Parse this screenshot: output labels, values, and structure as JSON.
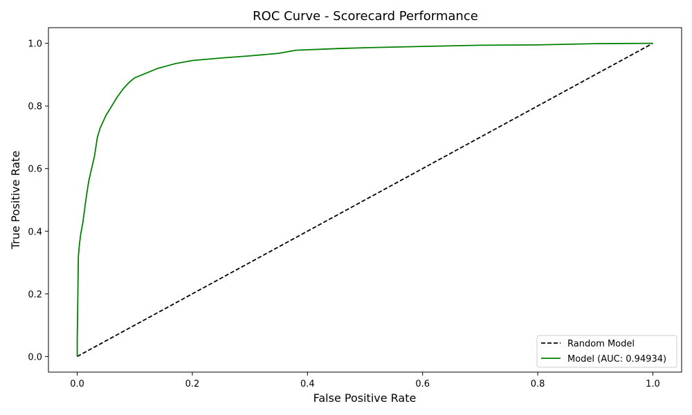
{
  "chart_data": {
    "type": "line",
    "title": "ROC Curve - Scorecard Performance",
    "xlabel": "False Positive Rate",
    "ylabel": "True Positive Rate",
    "xlim": [
      -0.05,
      1.05
    ],
    "ylim": [
      -0.05,
      1.05
    ],
    "xticks": [
      0.0,
      0.2,
      0.4,
      0.6,
      0.8,
      1.0
    ],
    "yticks": [
      0.0,
      0.2,
      0.4,
      0.6,
      0.8,
      1.0
    ],
    "xtick_labels": [
      "0.0",
      "0.2",
      "0.4",
      "0.6",
      "0.8",
      "1.0"
    ],
    "ytick_labels": [
      "0.0",
      "0.2",
      "0.4",
      "0.6",
      "0.8",
      "1.0"
    ],
    "grid": false,
    "legend_position": "lower-right",
    "series": [
      {
        "name": "Random Model",
        "color": "#000000",
        "dash": "dashed",
        "x": [
          0.0,
          1.0
        ],
        "y": [
          0.0,
          1.0
        ]
      },
      {
        "name": "Model (AUC: 0.94934)",
        "color": "#008000",
        "dash": "solid",
        "x": [
          0.0,
          0.0,
          0.002,
          0.004,
          0.006,
          0.01,
          0.015,
          0.02,
          0.025,
          0.03,
          0.035,
          0.04,
          0.05,
          0.06,
          0.07,
          0.08,
          0.09,
          0.1,
          0.12,
          0.14,
          0.17,
          0.2,
          0.25,
          0.3,
          0.35,
          0.38,
          0.45,
          0.5,
          0.6,
          0.7,
          0.8,
          0.85,
          0.9,
          1.0
        ],
        "y": [
          0.0,
          0.05,
          0.32,
          0.36,
          0.39,
          0.43,
          0.5,
          0.56,
          0.6,
          0.64,
          0.7,
          0.73,
          0.77,
          0.8,
          0.83,
          0.855,
          0.875,
          0.89,
          0.905,
          0.92,
          0.935,
          0.945,
          0.953,
          0.96,
          0.968,
          0.978,
          0.983,
          0.986,
          0.99,
          0.994,
          0.995,
          0.997,
          0.999,
          1.0
        ]
      }
    ]
  }
}
